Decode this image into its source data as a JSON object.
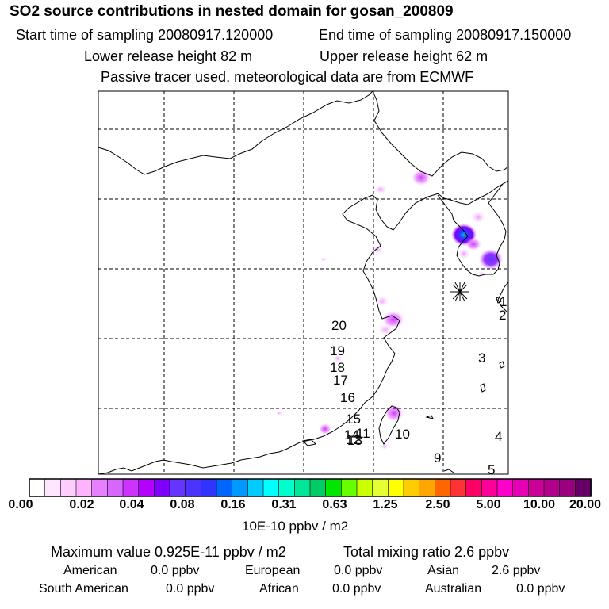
{
  "header": {
    "title": "SO2 source contributions in nested domain for gosan_200809",
    "start_time": "Start time of sampling 20080917.120000",
    "end_time": "End time of sampling 20080917.150000",
    "lower_release": "Lower release height   82 m",
    "upper_release": "Upper release height   62 m",
    "note": "Passive tracer used, meteorological data are from ECMWF"
  },
  "map": {
    "trajectory_labels": [
      "1",
      "2",
      "3",
      "4",
      "5",
      "9",
      "10",
      "11",
      "12",
      "13",
      "14",
      "15",
      "16",
      "17",
      "18",
      "19",
      "20"
    ]
  },
  "colorbar": {
    "colors": [
      "#ffffff",
      "#ffe6ff",
      "#ffccff",
      "#ffb3ff",
      "#e680ff",
      "#d966ff",
      "#cc33ff",
      "#b300ff",
      "#8000ff",
      "#6633ff",
      "#4d33ff",
      "#3333ff",
      "#0066ff",
      "#0099ff",
      "#00ccff",
      "#00ffff",
      "#00ffcc",
      "#00e699",
      "#00cc66",
      "#00e600",
      "#66ff00",
      "#ccff00",
      "#e6ff33",
      "#ffff00",
      "#ffcc00",
      "#ffa600",
      "#ff6600",
      "#ff3333",
      "#ff0066",
      "#ff0099",
      "#ff00cc",
      "#e600b3",
      "#cc0099",
      "#b3008c",
      "#990080",
      "#660066"
    ],
    "ticks": [
      "0.00",
      "0.02",
      "0.04",
      "0.08",
      "0.16",
      "0.31",
      "0.63",
      "1.25",
      "2.50",
      "5.00",
      "10.00",
      "20.00"
    ],
    "unit": "10E-10 ppbv / m2"
  },
  "footer": {
    "max_value": "Maximum value  0.925E-11 ppbv / m2",
    "total": "Total mixing ratio       2.6 ppbv",
    "american": "American",
    "american_value": "0.0 ppbv",
    "european": "European",
    "european_value": "0.0 ppbv",
    "asian": "Asian",
    "asian_value": "2.6 ppbv",
    "south_american": "South American",
    "south_american_value": "0.0 ppbv",
    "african": "African",
    "african_value": "0.0 ppbv",
    "australian": "Australian",
    "australian_value": "0.0 ppbv"
  }
}
